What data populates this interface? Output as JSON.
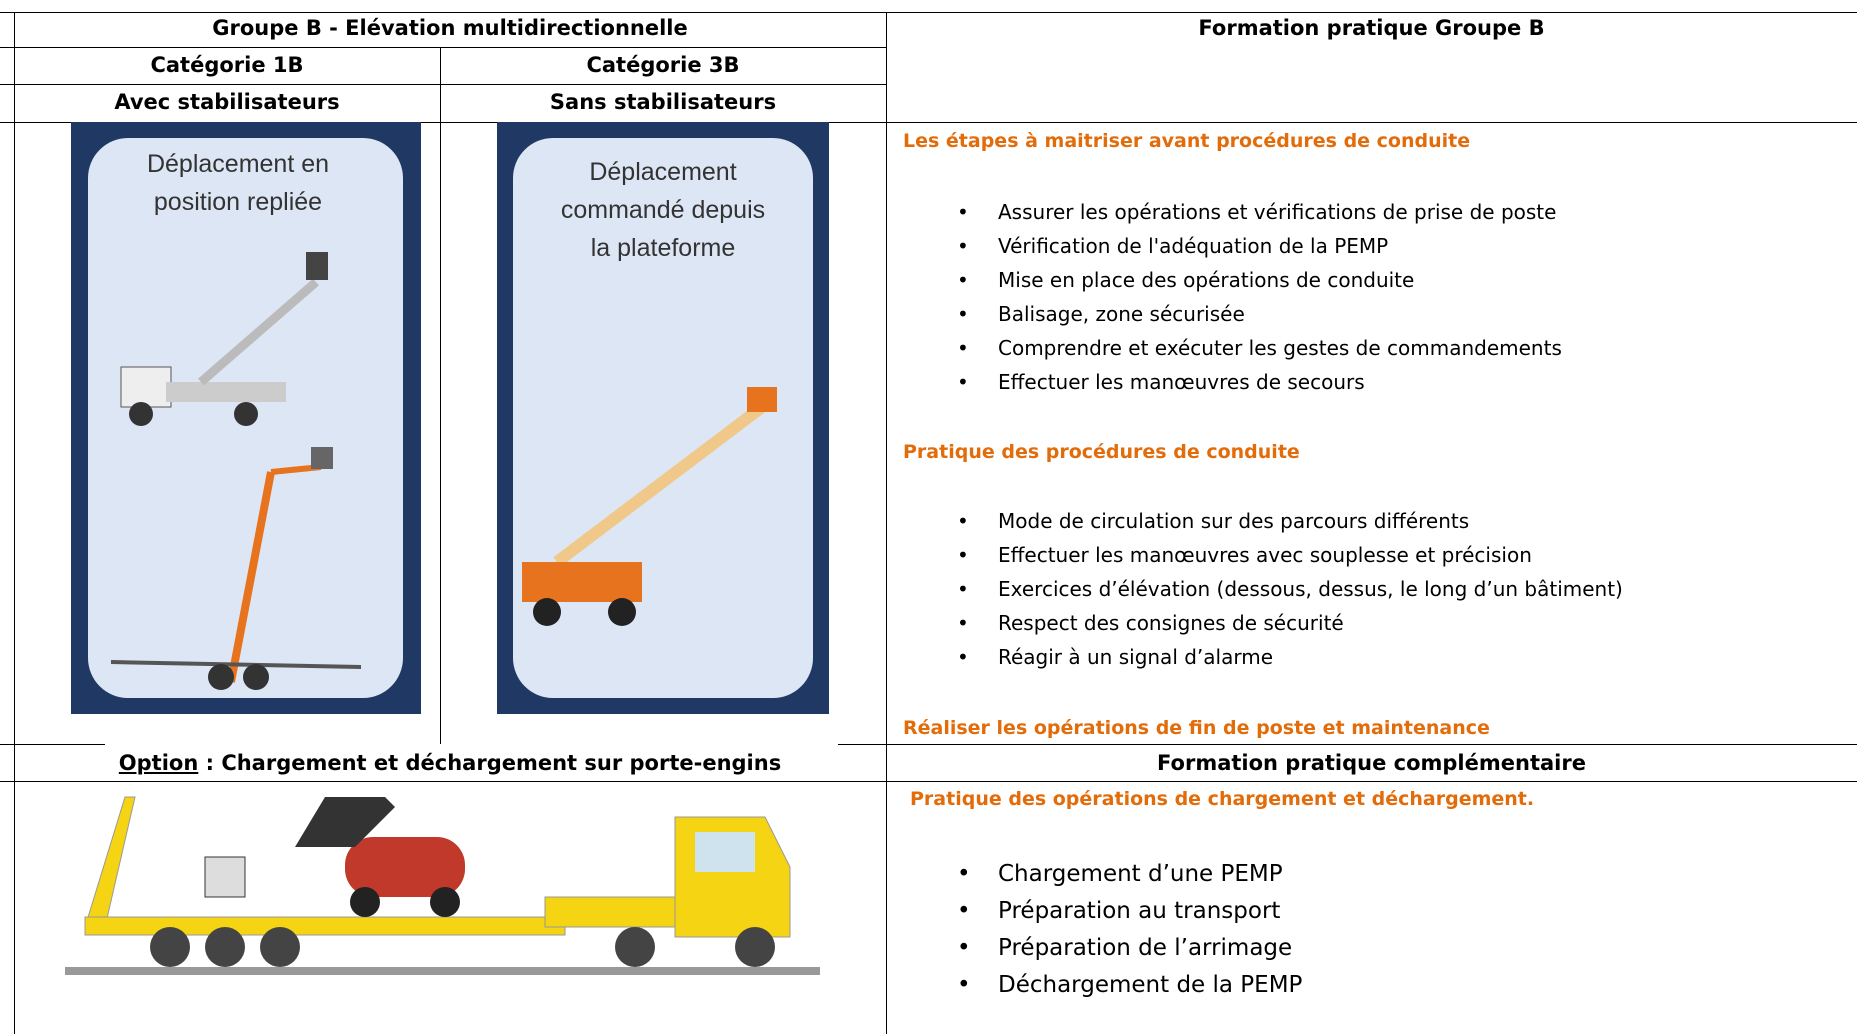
{
  "header": {
    "title": "Groupe B - Elévation multidirectionnelle",
    "right_title": "Formation pratique Groupe B",
    "categories": [
      {
        "name": "Catégorie 1B",
        "sub": "Avec stabilisateurs",
        "caption": [
          "Déplacement en",
          "position repliée"
        ]
      },
      {
        "name": "Catégorie 3B",
        "sub": "Sans stabilisateurs",
        "caption": [
          "Déplacement",
          "commandé depuis",
          "la plateforme"
        ]
      }
    ]
  },
  "practice": {
    "sections": [
      {
        "heading": "Les étapes à maitriser avant procédures de conduite",
        "items": [
          "Assurer les opérations et vérifications de prise de poste",
          "Vérification de l'adéquation de la PEMP",
          "Mise en place des opérations de conduite",
          "Balisage, zone sécurisée",
          "Comprendre et exécuter les gestes de commandements",
          "Effectuer les manœuvres de secours"
        ]
      },
      {
        "heading": "Pratique des procédures de conduite",
        "items": [
          "Mode de circulation sur des parcours différents",
          "Effectuer les manœuvres avec souplesse et précision",
          "Exercices d’élévation (dessous, dessus, le long d’un bâtiment)",
          "Respect des consignes de sécurité",
          "Réagir à un signal d’alarme"
        ]
      },
      {
        "heading": "Réaliser les opérations de fin de poste et maintenance",
        "items": []
      }
    ]
  },
  "option": {
    "label": "Option",
    "title": " : Chargement et déchargement sur porte-engins",
    "right_title": "Formation pratique complémentaire",
    "heading": "Pratique des opérations de chargement et déchargement.",
    "items": [
      "Chargement d’une PEMP",
      "Préparation au transport",
      "Préparation de l’arrimage",
      "Déchargement de la PEMP"
    ]
  }
}
